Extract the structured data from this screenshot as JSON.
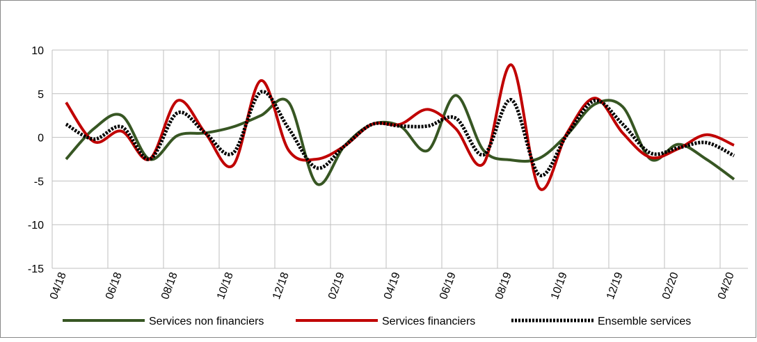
{
  "chart_data": {
    "type": "line",
    "categories": [
      "04/18",
      null,
      "06/18",
      null,
      "08/18",
      null,
      "10/18",
      null,
      "12/18",
      null,
      "02/19",
      null,
      "04/19",
      null,
      "06/19",
      null,
      "08/19",
      null,
      "10/19",
      null,
      "12/19",
      null,
      "02/20",
      null,
      "04/20"
    ],
    "series": [
      {
        "name": "Services non financiers",
        "color": "#375623",
        "dash": false,
        "values": [
          -2.5,
          1.0,
          2.5,
          -2.5,
          0.2,
          0.5,
          1.2,
          2.5,
          4.0,
          -5.3,
          -1.0,
          1.5,
          1.3,
          -1.5,
          4.8,
          -1.5,
          -2.6,
          -2.4,
          0.3,
          3.8,
          3.5,
          -2.5,
          -0.8,
          -2.5,
          -4.8
        ]
      },
      {
        "name": "Services financiers",
        "color": "#c00000",
        "dash": false,
        "values": [
          4.0,
          -0.5,
          0.7,
          -2.5,
          4.2,
          0.5,
          -3.2,
          6.5,
          -1.5,
          -2.5,
          -1.0,
          1.5,
          1.5,
          3.2,
          1.0,
          -3.0,
          8.3,
          -5.8,
          0.5,
          4.5,
          0.5,
          -2.3,
          -1.3,
          0.3,
          -0.9
        ]
      },
      {
        "name": "Ensemble services",
        "color": "#000000",
        "dash": true,
        "values": [
          1.5,
          -0.2,
          1.2,
          -2.5,
          2.8,
          0.5,
          -1.8,
          5.2,
          1.0,
          -3.5,
          -1.0,
          1.5,
          1.3,
          1.3,
          2.2,
          -2.0,
          4.3,
          -4.3,
          0.3,
          4.2,
          1.5,
          -1.8,
          -1.2,
          -0.6,
          -2.1
        ]
      }
    ],
    "ylim": [
      -15,
      10
    ],
    "yticks": [
      -15,
      -10,
      -5,
      0,
      5,
      10
    ],
    "grid": true,
    "legend": "bottom"
  }
}
